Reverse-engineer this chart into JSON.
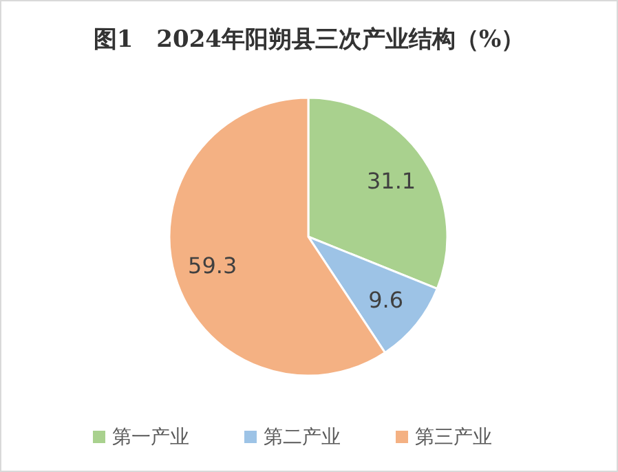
{
  "chart_data": {
    "type": "pie",
    "title": "图1　2024年阳朔县三次产业结构（%）",
    "categories": [
      "第一产业",
      "第二产业",
      "第三产业"
    ],
    "values": [
      31.1,
      9.6,
      59.3
    ],
    "colors": [
      "#a9d18e",
      "#9dc3e6",
      "#f4b183"
    ],
    "data_labels": true,
    "legend": "bottom"
  }
}
